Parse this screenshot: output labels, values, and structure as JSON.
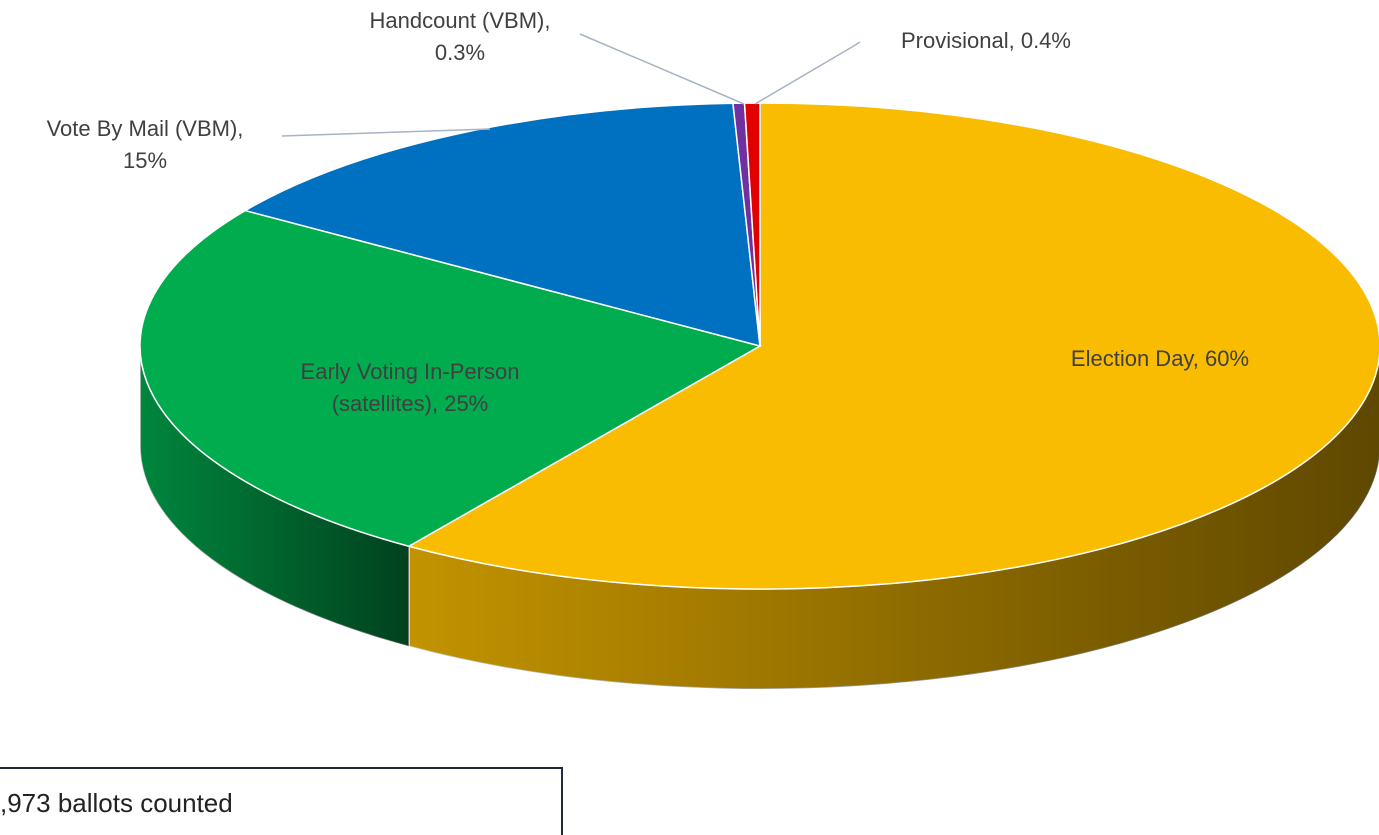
{
  "chart_data": {
    "type": "pie",
    "values": [
      60,
      25,
      15,
      0.3,
      0.4
    ],
    "value_labels": [
      [
        "Election Day, 60%"
      ],
      [
        "Early Voting In-Person",
        "(satellites), 25%"
      ],
      [
        "Vote By Mail (VBM),",
        "15%"
      ],
      [
        "Handcount (VBM),",
        "0.3%"
      ],
      [
        "Provisional, 0.4%"
      ]
    ],
    "colors": [
      "#f9bc00",
      "#00ac4e",
      "#0070c0",
      "#7030a0",
      "#e00000"
    ],
    "annotation": ",973 ballots counted"
  }
}
